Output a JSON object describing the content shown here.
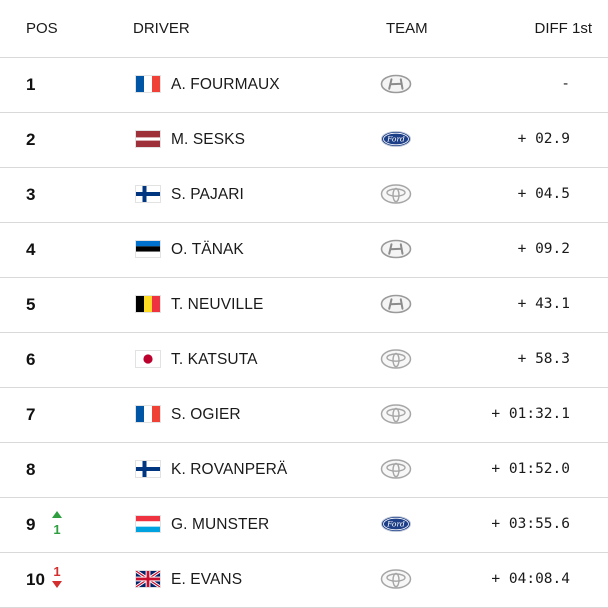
{
  "header": {
    "pos": "POS",
    "driver": "DRIVER",
    "team": "TEAM",
    "diff": "DIFF 1st"
  },
  "rows": [
    {
      "pos": "1",
      "flag": "france",
      "driver": "A. FOURMAUX",
      "team": "hyundai",
      "diff": "-"
    },
    {
      "pos": "2",
      "flag": "latvia",
      "driver": "M. SESKS",
      "team": "ford",
      "diff": "+ 02.9"
    },
    {
      "pos": "3",
      "flag": "finland",
      "driver": "S. PAJARI",
      "team": "toyota",
      "diff": "+ 04.5"
    },
    {
      "pos": "4",
      "flag": "estonia",
      "driver": "O. TÄNAK",
      "team": "hyundai",
      "diff": "+ 09.2"
    },
    {
      "pos": "5",
      "flag": "belgium",
      "driver": "T. NEUVILLE",
      "team": "hyundai",
      "diff": "+ 43.1"
    },
    {
      "pos": "6",
      "flag": "japan",
      "driver": "T. KATSUTA",
      "team": "toyota",
      "diff": "+ 58.3"
    },
    {
      "pos": "7",
      "flag": "france",
      "driver": "S. OGIER",
      "team": "toyota",
      "diff": "+ 01:32.1"
    },
    {
      "pos": "8",
      "flag": "finland",
      "driver": "K. ROVANPERÄ",
      "team": "toyota",
      "diff": "+ 01:52.0"
    },
    {
      "pos": "9",
      "flag": "luxembourg",
      "driver": "G. MUNSTER",
      "team": "ford",
      "diff": "+ 03:55.6",
      "change": {
        "dir": "up",
        "value": "1"
      }
    },
    {
      "pos": "10",
      "flag": "uk",
      "driver": "E. EVANS",
      "team": "toyota",
      "diff": "+ 04:08.4",
      "change": {
        "dir": "down",
        "value": "1"
      }
    }
  ],
  "colors": {
    "up": "#2e9e3f",
    "down": "#d32f2f",
    "divider": "#d9d9d9",
    "ford_blue": "#1d3f87"
  }
}
